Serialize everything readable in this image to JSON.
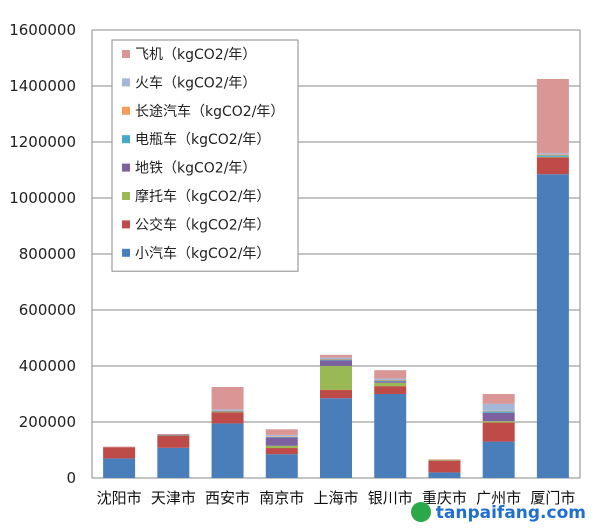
{
  "chart_data": {
    "type": "bar",
    "stacked": true,
    "title": "",
    "xlabel": "",
    "ylabel": "",
    "ylim": [
      0,
      1600000
    ],
    "yticks": [
      0,
      200000,
      400000,
      600000,
      800000,
      1000000,
      1200000,
      1400000,
      1600000
    ],
    "grid": true,
    "legend_position": "top-left",
    "categories": [
      "沈阳市",
      "天津市",
      "西安市",
      "南京市",
      "上海市",
      "银川市",
      "重庆市",
      "广州市",
      "厦门市"
    ],
    "series": [
      {
        "name": "小汽车（kgCO2/年）",
        "color": "#4a7ebb",
        "values": [
          70000,
          108000,
          195000,
          85000,
          285000,
          300000,
          20000,
          130000,
          1085000
        ]
      },
      {
        "name": "公交车（kgCO2/年）",
        "color": "#be4b48",
        "values": [
          40000,
          42000,
          40000,
          22000,
          30000,
          28000,
          42000,
          68000,
          60000
        ]
      },
      {
        "name": "摩托车（kgCO2/年）",
        "color": "#98b954",
        "values": [
          0,
          2000,
          3000,
          8000,
          85000,
          12000,
          3000,
          5000,
          2000
        ]
      },
      {
        "name": "地铁（kgCO2/年）",
        "color": "#7d60a0",
        "values": [
          0,
          3000,
          2000,
          30000,
          20000,
          5000,
          0,
          30000,
          0
        ]
      },
      {
        "name": "电瓶车（kgCO2/年）",
        "color": "#46aac5",
        "values": [
          0,
          0,
          0,
          2000,
          3000,
          3000,
          0,
          5000,
          5000
        ]
      },
      {
        "name": "长途汽车（kgCO2/年）",
        "color": "#f59d56",
        "values": [
          0,
          0,
          0,
          2000,
          2000,
          2000,
          0,
          2000,
          3000
        ]
      },
      {
        "name": "火车（kgCO2/年）",
        "color": "#a5b6d9",
        "values": [
          0,
          0,
          5000,
          5000,
          5000,
          5000,
          0,
          25000,
          5000
        ]
      },
      {
        "name": "飞机（kgCO2/年）",
        "color": "#d99694",
        "values": [
          2000,
          2000,
          80000,
          20000,
          10000,
          30000,
          2000,
          35000,
          265000
        ]
      }
    ]
  },
  "watermark": "tanpaifang.com"
}
